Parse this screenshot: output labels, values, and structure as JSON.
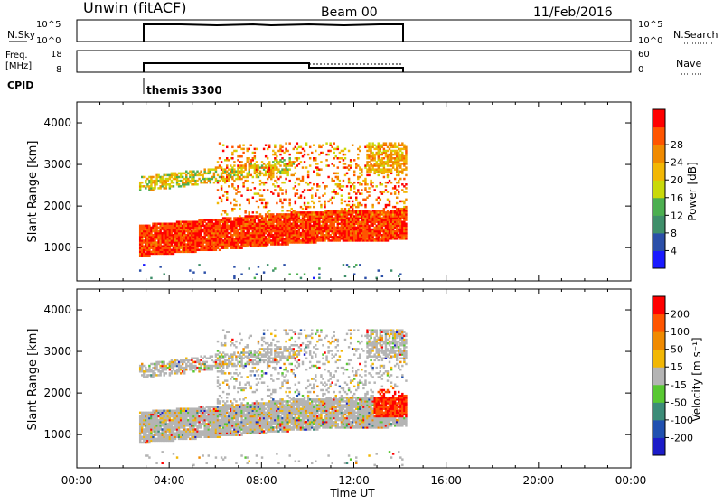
{
  "header": {
    "station": "Unwin (fitACF)",
    "beam": "Beam 00",
    "date": "11/Feb/2016"
  },
  "top_panels": {
    "nsky_label": "N.Sky",
    "nsky_ticks": [
      "10^5",
      "10^0"
    ],
    "nsearch_label": "N.Search",
    "nsearch_ticks": [
      "10^5",
      "10^0"
    ],
    "freq_label": "Freq.",
    "freq_unit": "[MHz]",
    "freq_ticks": [
      "18",
      "8"
    ],
    "nave_label": "Nave",
    "nave_ticks": [
      "60",
      "0"
    ],
    "cpid_label": "CPID",
    "cpid_value": "themis 3300"
  },
  "chart_data": [
    {
      "type": "heatmap",
      "name": "power-panel",
      "ylabel": "Slant Range [km]",
      "xlabel": "Time UT",
      "ylim": [
        200,
        4500
      ],
      "xlim": [
        0,
        24
      ],
      "yticks": [
        1000,
        2000,
        3000,
        4000
      ],
      "xticks": [
        "00:00",
        "04:00",
        "08:00",
        "12:00",
        "16:00",
        "20:00",
        "00:00"
      ],
      "colorbar": {
        "label": "Power [dB]",
        "ticks": [
          "4",
          "8",
          "12",
          "16",
          "20",
          "24",
          "28"
        ],
        "colors": [
          "#1a1aff",
          "#2b4fa8",
          "#3f8f6a",
          "#4caf50",
          "#c9d90a",
          "#f2b705",
          "#f08a00",
          "#ff5500",
          "#ff0000"
        ]
      },
      "data_extent_hours": [
        2.7,
        14.3
      ],
      "bands": [
        {
          "t0": 2.7,
          "t1": 14.3,
          "r0": 900,
          "r1": 1700,
          "level": "high"
        },
        {
          "t0": 2.7,
          "t1": 9.0,
          "r0": 2200,
          "r1": 3000,
          "level": "medium"
        },
        {
          "t0": 6.0,
          "t1": 14.3,
          "r0": 1600,
          "r1": 3500,
          "level": "high"
        }
      ]
    },
    {
      "type": "heatmap",
      "name": "velocity-panel",
      "ylabel": "Slant Range [km]",
      "xlabel": "Time UT",
      "ylim": [
        200,
        4500
      ],
      "xlim": [
        0,
        24
      ],
      "yticks": [
        1000,
        2000,
        3000,
        4000
      ],
      "xticks": [
        "00:00",
        "04:00",
        "08:00",
        "12:00",
        "16:00",
        "20:00",
        "00:00"
      ],
      "colorbar": {
        "label": "Velocity [m s⁻¹]",
        "ticks": [
          "200",
          "100",
          "50",
          "15",
          "-15",
          "-50",
          "-100",
          "-200"
        ],
        "colors": [
          "#1c1cc8",
          "#2050b0",
          "#3c8c78",
          "#58c832",
          "#b4b4b4",
          "#f2b705",
          "#f08a00",
          "#ff5500",
          "#ff0000"
        ]
      },
      "data_extent_hours": [
        2.7,
        14.3
      ]
    }
  ]
}
